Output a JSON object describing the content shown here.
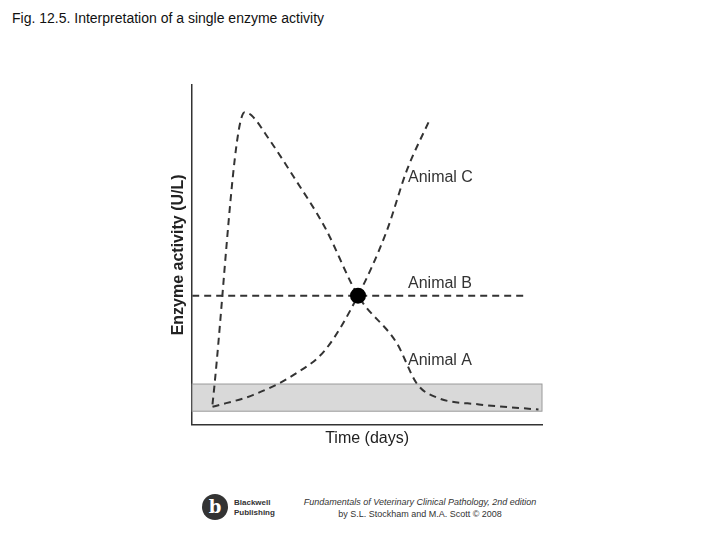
{
  "chart_data": {
    "type": "line",
    "title": "Fig. 12.5. Interpretation of a single enzyme activity",
    "x_label": "Time (days)",
    "y_label": "Enzyme activity (U/L)",
    "xlim": [
      0,
      10
    ],
    "ylim": [
      0,
      100
    ],
    "xticks": [],
    "yticks": [],
    "tick_labels": false,
    "grid": false,
    "reference_interval": [
      4,
      12
    ],
    "highlight": {
      "x": 4.74,
      "y": 38
    },
    "series": [
      {
        "name": "Animal A",
        "color": "#333333",
        "line_style": "dashed",
        "x": [
          0.58,
          1.5,
          1.7,
          2.2,
          2.9,
          3.8,
          4.74,
          5.85,
          6.43,
          7.0,
          8.2,
          9.9
        ],
        "values": [
          6,
          92,
          91,
          84,
          73,
          58,
          38,
          24,
          12,
          8,
          6,
          4.5
        ]
      },
      {
        "name": "Animal B",
        "color": "#333333",
        "line_style": "dashed",
        "x": [
          0,
          9.5
        ],
        "values": [
          38,
          38
        ]
      },
      {
        "name": "Animal C",
        "color": "#333333",
        "line_style": "dashed",
        "x": [
          0.58,
          1.75,
          2.9,
          3.8,
          4.74,
          5.56,
          6.14,
          6.8
        ],
        "values": [
          5.3,
          8.8,
          14.7,
          22,
          38,
          57,
          75,
          90
        ]
      }
    ]
  },
  "footer": {
    "logo_letter": "b",
    "publisher": [
      "Blackwell",
      "Publishing"
    ],
    "lines": [
      "Fundamentals of Veterinary Clinical Pathology, 2nd edition",
      "by S.L. Stockham and M.A. Scott © 2008"
    ]
  }
}
